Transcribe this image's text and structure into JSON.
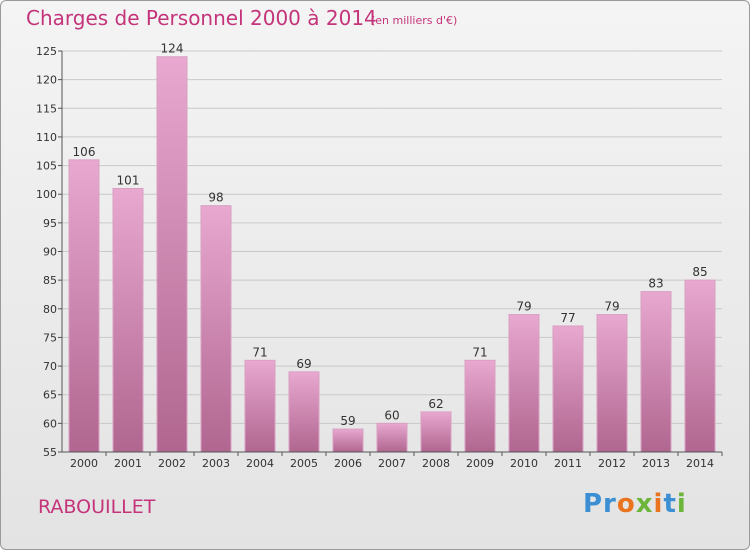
{
  "header": {
    "title": "Charges de Personnel 2000 à 2014",
    "subtitle": "(en milliers d'€)"
  },
  "footer": {
    "commune": "RABOUILLET",
    "brand": "Proxiti"
  },
  "colors": {
    "title": "#c4347a",
    "bar_light": "#e8a8d0",
    "bar_dark": "#b0668f",
    "grid": "#c9c9c9"
  },
  "chart_data": {
    "type": "bar",
    "title": "Charges de Personnel 2000 à 2014",
    "subtitle": "(en milliers d'€)",
    "categories": [
      "2000",
      "2001",
      "2002",
      "2003",
      "2004",
      "2005",
      "2006",
      "2007",
      "2008",
      "2009",
      "2010",
      "2011",
      "2012",
      "2013",
      "2014"
    ],
    "values": [
      106,
      101,
      124,
      98,
      71,
      69,
      59,
      60,
      62,
      71,
      79,
      77,
      79,
      83,
      85
    ],
    "ylim": [
      55,
      125
    ],
    "yticks": [
      55,
      60,
      65,
      70,
      75,
      80,
      85,
      90,
      95,
      100,
      105,
      110,
      115,
      120,
      125
    ],
    "grid": true,
    "data_labels": true
  }
}
